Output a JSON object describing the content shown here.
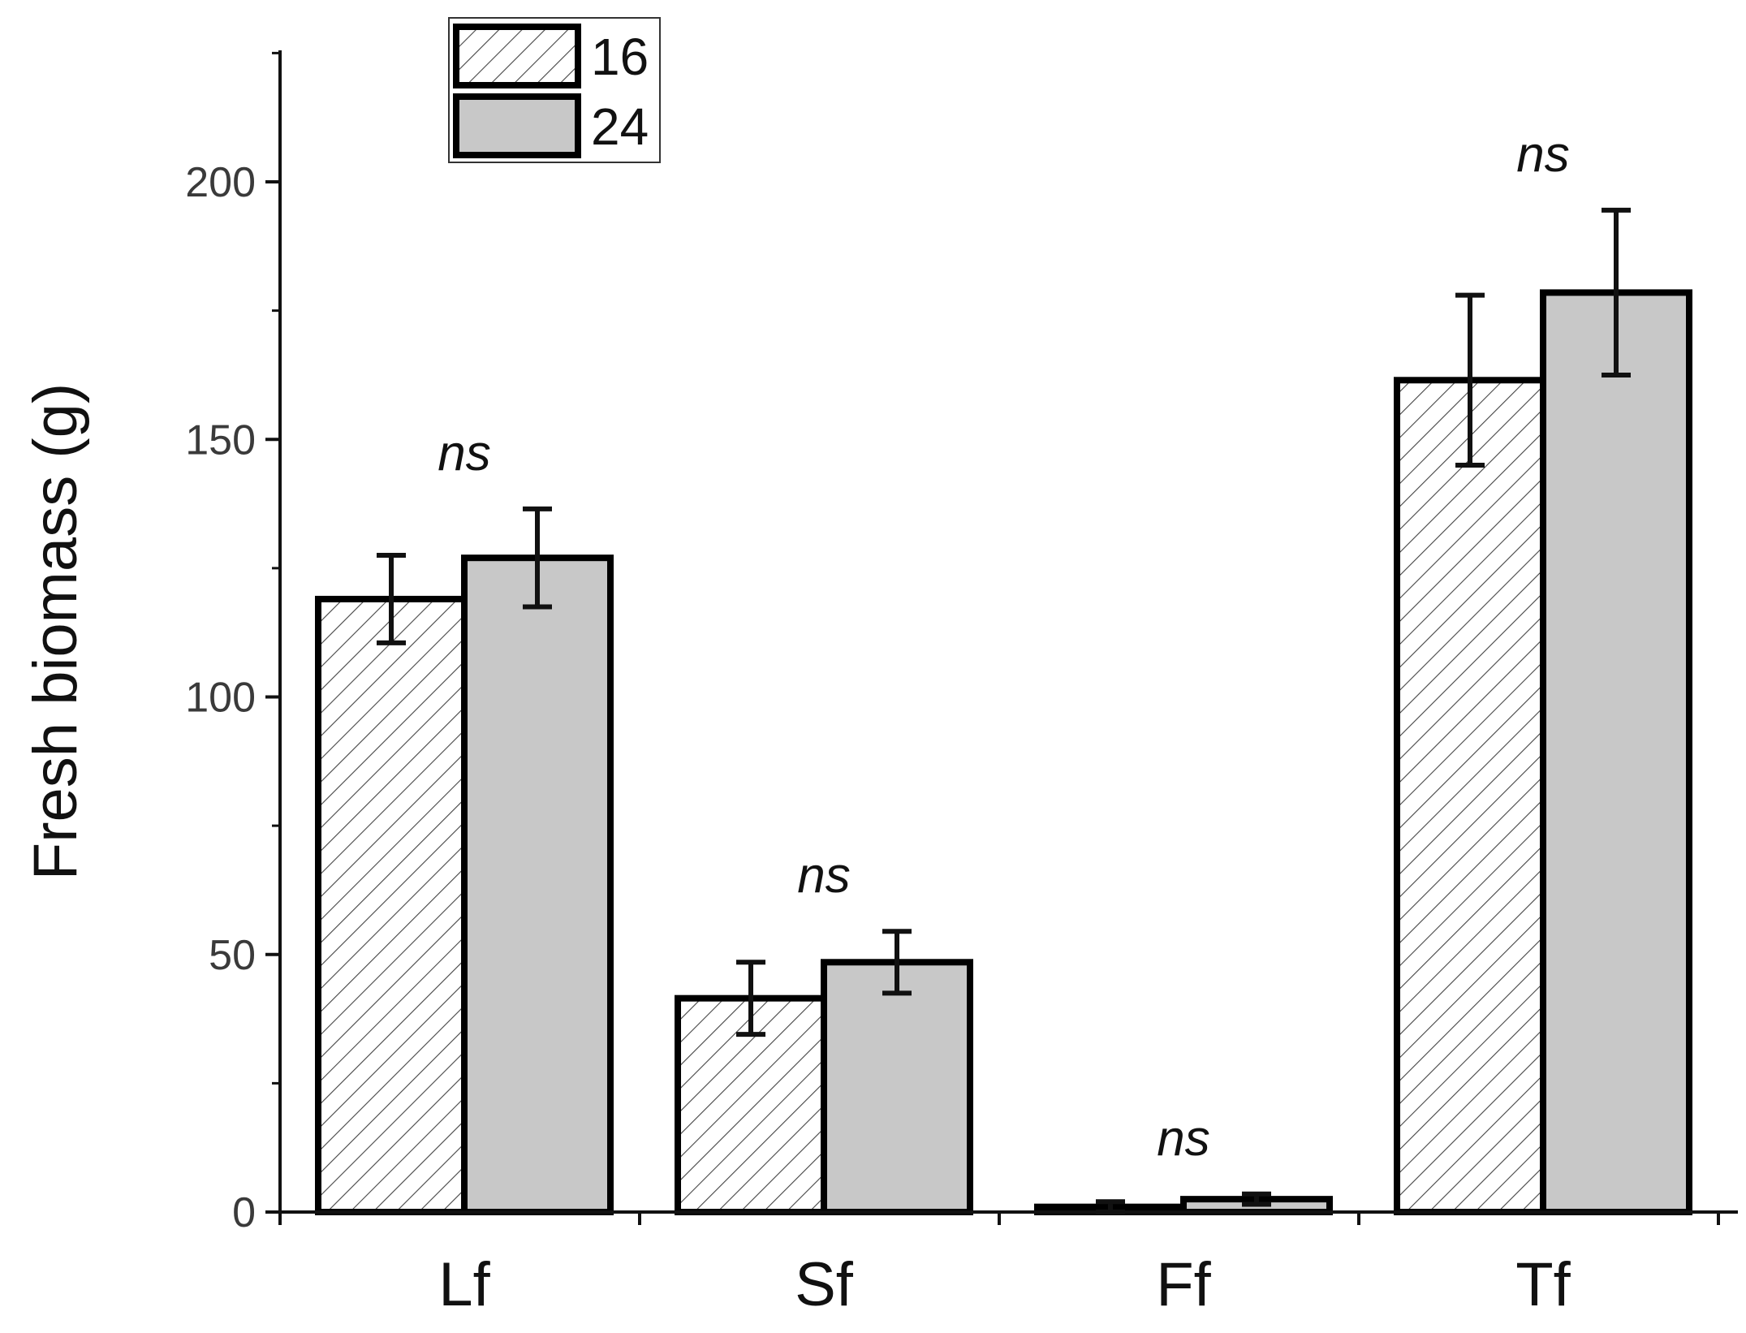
{
  "chart_data": {
    "type": "bar",
    "title": "",
    "xlabel": "",
    "ylabel": "Fresh biomass (g)",
    "categories": [
      "Lf",
      "Sf",
      "Ff",
      "Tf"
    ],
    "ylim": [
      0,
      225
    ],
    "yticks": [
      0,
      50,
      100,
      150,
      200
    ],
    "legend_position": "top-left",
    "series": [
      {
        "name": "16",
        "pattern": "hatched",
        "color": "#ffffff",
        "values": [
          119,
          41.5,
          1,
          161.5
        ],
        "errors": [
          8.5,
          7,
          1,
          16.5
        ]
      },
      {
        "name": "24",
        "pattern": "solid",
        "color": "#c8c8c8",
        "values": [
          127,
          48.5,
          2.5,
          178.5
        ],
        "errors": [
          9.5,
          6,
          1,
          16
        ]
      }
    ],
    "annotations": [
      "ns",
      "ns",
      "ns",
      "ns"
    ]
  },
  "colors": {
    "axis": "#111111",
    "bar_edge": "#000000",
    "gray_fill": "#c8c8c8",
    "hatch": "#444444"
  }
}
